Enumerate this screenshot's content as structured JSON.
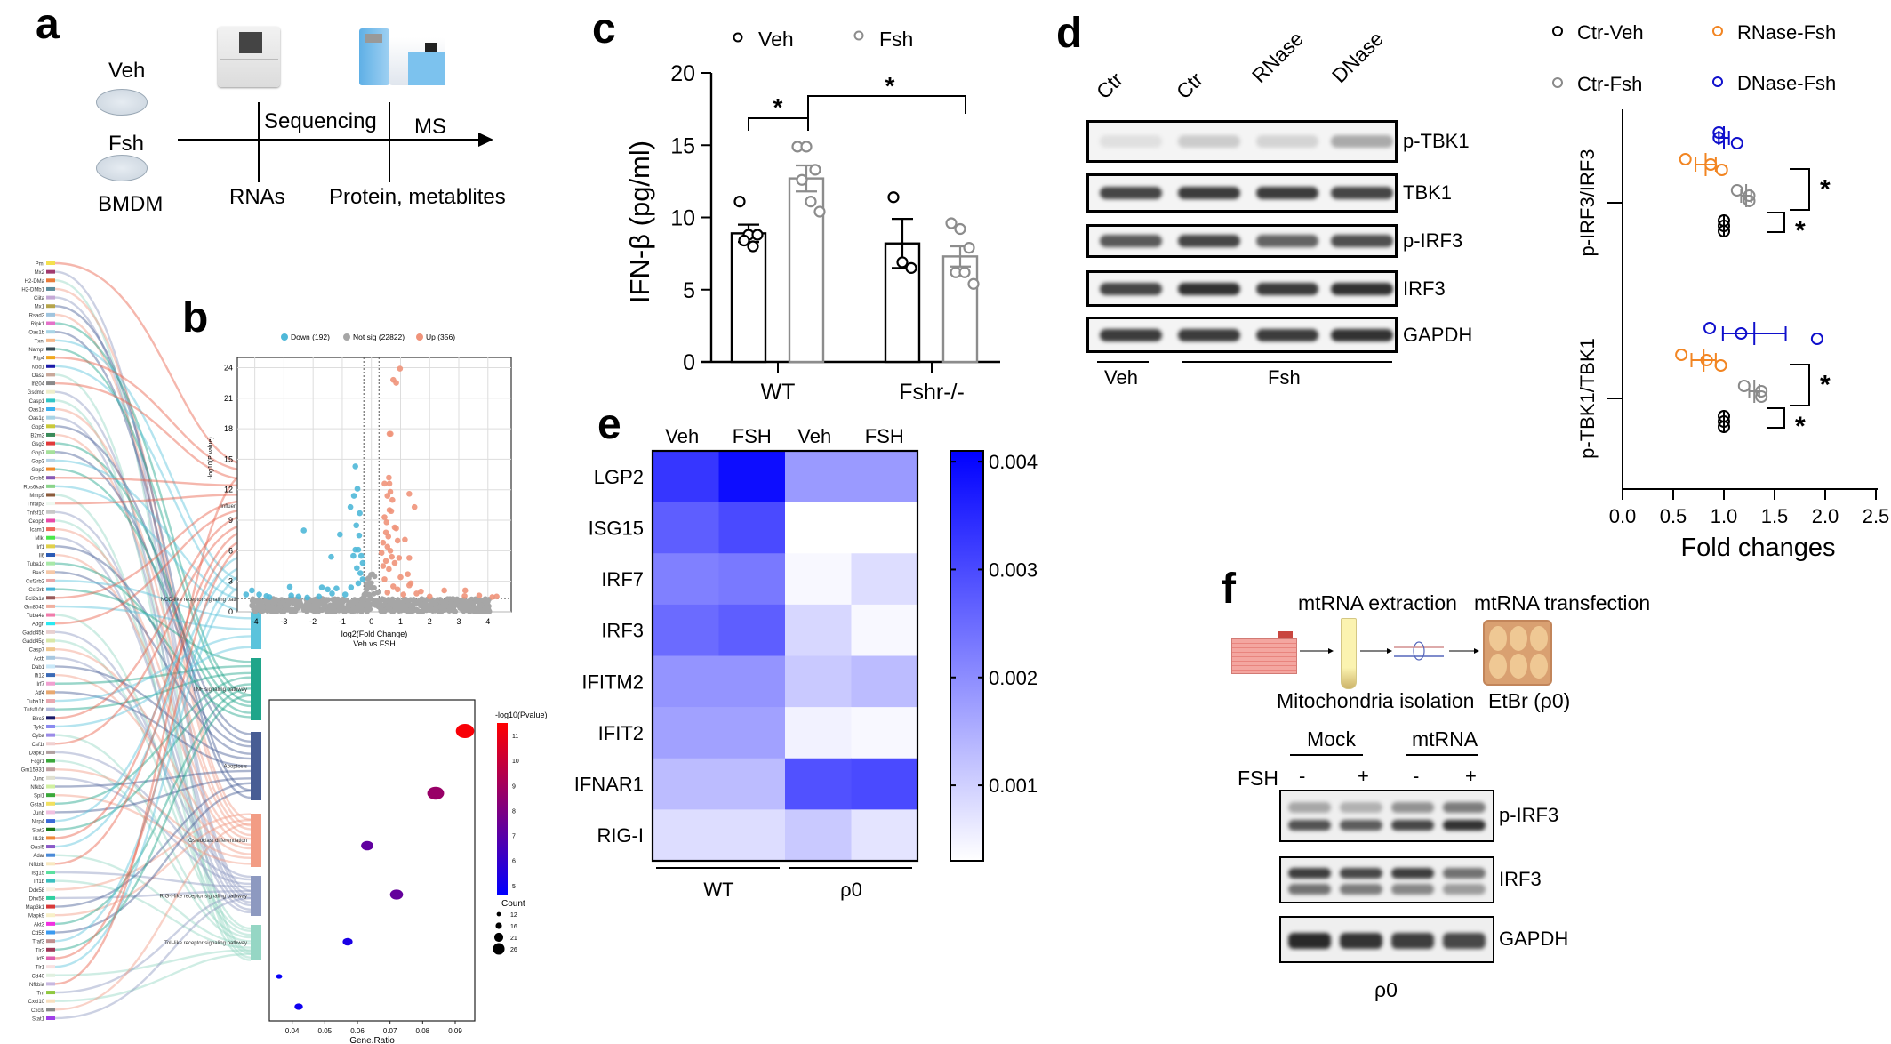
{
  "panels": {
    "a": {
      "label": "a",
      "groups": [
        "Veh",
        "Fsh"
      ],
      "cell_type": "BMDM",
      "arrow_labels": {
        "sequencing": "Sequencing",
        "ms": "MS"
      },
      "outputs": [
        "RNAs",
        "Protein, metablites"
      ],
      "genes": [
        "Pml",
        "Mx2",
        "H2-DMa",
        "H2-DMb1",
        "Ciita",
        "Mx1",
        "Rsad2",
        "Ripk1",
        "Oas1b",
        "Txnl",
        "Nampt",
        "Rtp4",
        "Nod1",
        "Oas2",
        "Ifi204",
        "Gsdmd",
        "Casp1",
        "Oas1a",
        "Oas1g",
        "Gbp5",
        "B2m2",
        "Gsg3",
        "Gbp7",
        "Gbp3",
        "Gbp2",
        "Creb5",
        "Rps6ka4",
        "Mmp9",
        "Tnfaip3",
        "Tnfsf10",
        "Cebpb",
        "Icam1",
        "Mlkl",
        "Irf1",
        "Il6",
        "Tuba1c",
        "Bax3",
        "Csf2rb2",
        "Csf2rb",
        "Bcl2a1a",
        "Gm8045",
        "Tuba4a",
        "Adgrl",
        "Gadd45b",
        "Gadd45g",
        "Casp7",
        "Actb",
        "Dab1",
        "Ifi12",
        "Irf7",
        "Atf4",
        "Tuba1b",
        "Tnfsf10b",
        "Birc3",
        "Tyk2",
        "Cyba",
        "Csf1r",
        "Dapk1",
        "Fcgr1",
        "Gm15931",
        "Jund",
        "Nfkb2",
        "Spi1",
        "Gsta1",
        "Junb",
        "Nlrp4",
        "Stat2",
        "Il12b",
        "Oasl5",
        "Adar",
        "Nfkbib",
        "Isg15",
        "Irf1b",
        "Ddx58",
        "Dhx58",
        "Map3k1",
        "Mapk9",
        "Akt3",
        "Cd55",
        "Traf3",
        "Tlr2",
        "Irf5",
        "Tlr1",
        "Cd40",
        "Nfkbia",
        "Tnf",
        "Cxcl10",
        "Cxcl9",
        "Stat1"
      ],
      "gene_colors": [
        "#f4e04d",
        "#a23a6e",
        "#e87b3a",
        "#5c8d9c",
        "#c5a9d6",
        "#b5a44a",
        "#9fc4de",
        "#e472c9",
        "#a8d4e6",
        "#f5b88a",
        "#3b4e57",
        "#f0a81e",
        "#1a1aa8",
        "#c9a89a",
        "#8a8a8a",
        "#eeeecc",
        "#31c6c6",
        "#3fb3f0",
        "#a8d4e6",
        "#c9c93a",
        "#3a8a5a",
        "#e03a3a",
        "#a5e09a",
        "#b5d4e6",
        "#f08a2a",
        "#8a5ab5",
        "#8ad48a",
        "#8a5a3a",
        "#eef8f0",
        "#c8c8c8",
        "#e84aa8",
        "#f06a5a",
        "#4ae84a",
        "#e0d04a",
        "#2a5ab5",
        "#a8e8a8",
        "#f5c8a8",
        "#e8a8a8",
        "#4ab5d8",
        "#9a5a5a",
        "#f0b0a0",
        "#f07aaa",
        "#2ae8f0",
        "#e8d0d0",
        "#d8e8a8",
        "#f0c890",
        "#a8c8e0",
        "#c8e8f8",
        "#3a6ab5",
        "#f0a0d0",
        "#e8a870",
        "#e8a8b0",
        "#b0b8d8",
        "#1a1a6a",
        "#8a8af0",
        "#9a8ae8",
        "#f0d0d0",
        "#b0a0a0",
        "#3aa83a",
        "#c0a0a0",
        "#e0e0d0",
        "#d0f0a0",
        "#3aa83a",
        "#f0e060",
        "#f0c0e0",
        "#3a6ad8",
        "#1a7a1a",
        "#f08a3a",
        "#8a5ac8",
        "#4a8ad8",
        "#f8e8c0",
        "#5ae0a0",
        "#3ac0c0",
        "#f8f0e0",
        "#30d0a0",
        "#d83a3a",
        "#f8f0c8",
        "#f030e0",
        "#3a9af0",
        "#c09090",
        "#a03a5a",
        "#e060b0",
        "#f8e0e0",
        "#e0f0e0",
        "#c8b8e0",
        "#90c840",
        "#f8e0c0",
        "#8a8a8a",
        "#a040e8"
      ],
      "pathways": [
        "Influenza A",
        "NOD-like receptor signaling pathway",
        "TNF signaling pathway",
        "Apoptosis",
        "Osteoclast differentiation",
        "RIG-I-like receptor signaling pathway",
        "Toll-like receptor signaling pathway"
      ],
      "pathway_colors": [
        "#e8604a",
        "#5bc3dc",
        "#1fa58a",
        "#485d94",
        "#f29c84",
        "#8d99c0",
        "#95d6c4"
      ]
    },
    "b": {
      "label": "b"
    },
    "c": {
      "label": "c"
    },
    "d": {
      "label": "d",
      "lanes": [
        "Ctr",
        "Ctr",
        "RNase",
        "DNase"
      ],
      "blots": [
        "p-TBK1",
        "TBK1",
        "p-IRF3",
        "IRF3",
        "GAPDH"
      ],
      "blot_intensity": [
        [
          0.08,
          0.18,
          0.14,
          0.35
        ],
        [
          0.85,
          0.9,
          0.9,
          0.85
        ],
        [
          0.75,
          0.85,
          0.7,
          0.8
        ],
        [
          0.85,
          0.95,
          0.9,
          0.95
        ],
        [
          0.9,
          0.9,
          0.9,
          0.95
        ]
      ],
      "group_labels": [
        "Veh",
        "Fsh"
      ]
    },
    "e": {
      "label": "e"
    },
    "f": {
      "label": "f",
      "steps": {
        "top1": "mtRNA extraction",
        "top2": "mtRNA transfection",
        "bottom1": "Mitochondria isolation",
        "bottom2": "EtBr (ρ0)"
      },
      "group_labels": [
        "Mock",
        "mtRNA"
      ],
      "fsh_label": "FSH",
      "fsh_signs": [
        "-",
        "+",
        "-",
        "+"
      ],
      "blots": [
        "p-IRF3",
        "IRF3",
        "GAPDH"
      ],
      "footer": "ρ0"
    }
  },
  "chart_data": [
    {
      "id": "volcano",
      "type": "scatter",
      "title": "",
      "legend": [
        {
          "name": "Down (192)",
          "color": "#4fb8d8"
        },
        {
          "name": "Not sig (22822)",
          "color": "#a6a6a6"
        },
        {
          "name": "Up (356)",
          "color": "#f0937a"
        }
      ],
      "legend_position": "top",
      "xlabel": "log2(Fold Change)",
      "xlabel_sub": "Veh vs FSH",
      "ylabel": "-log10(P value)",
      "xlim": [
        -4.6,
        4.8
      ],
      "ylim": [
        0,
        25
      ],
      "xticks": [
        -4,
        -3,
        -2,
        -1,
        0,
        1,
        2,
        3,
        4
      ],
      "yticks": [
        0,
        3,
        6,
        9,
        12,
        15,
        18,
        21,
        24
      ],
      "thresholds": {
        "x": [
          -0.26,
          0.26
        ],
        "y": 1.3
      },
      "up_points": [
        [
          0.98,
          23.9
        ],
        [
          0.75,
          22.8
        ],
        [
          0.85,
          22.5
        ],
        [
          0.62,
          17.5
        ],
        [
          0.66,
          17.5
        ],
        [
          0.6,
          13.2
        ],
        [
          0.62,
          12.6
        ],
        [
          0.45,
          12.6
        ],
        [
          1.3,
          11.6
        ],
        [
          0.65,
          11.8
        ],
        [
          0.55,
          11.4
        ],
        [
          0.72,
          11.0
        ],
        [
          1.48,
          10.3
        ],
        [
          0.62,
          10.0
        ],
        [
          0.68,
          9.9
        ],
        [
          0.45,
          9.3
        ],
        [
          0.52,
          8.8
        ],
        [
          0.8,
          8.3
        ],
        [
          0.85,
          8.2
        ],
        [
          0.5,
          7.8
        ],
        [
          0.58,
          7.4
        ],
        [
          1.15,
          7.1
        ],
        [
          0.9,
          7.0
        ],
        [
          0.4,
          6.8
        ],
        [
          0.55,
          6.4
        ],
        [
          0.65,
          6.0
        ],
        [
          0.35,
          5.8
        ],
        [
          0.7,
          5.4
        ],
        [
          0.95,
          5.3
        ],
        [
          1.3,
          5.3
        ],
        [
          0.5,
          5.0
        ],
        [
          0.8,
          4.8
        ],
        [
          0.4,
          4.5
        ],
        [
          0.6,
          4.2
        ],
        [
          1.0,
          3.4
        ],
        [
          1.25,
          3.7
        ],
        [
          0.45,
          3.2
        ],
        [
          1.35,
          2.8
        ],
        [
          1.3,
          2.6
        ],
        [
          0.75,
          2.5
        ],
        [
          0.9,
          2.2
        ],
        [
          1.7,
          2.0
        ],
        [
          2.5,
          2.1
        ],
        [
          3.22,
          2.1
        ],
        [
          1.55,
          1.8
        ],
        [
          1.1,
          1.7
        ],
        [
          3.7,
          1.6
        ],
        [
          4.3,
          1.5
        ],
        [
          4.15,
          1.45
        ],
        [
          2.0,
          1.5
        ],
        [
          3.2,
          1.55
        ],
        [
          0.55,
          1.9
        ]
      ],
      "down_points": [
        [
          -0.55,
          14.3
        ],
        [
          -0.48,
          12.1
        ],
        [
          -0.6,
          11.4
        ],
        [
          -0.72,
          10.3
        ],
        [
          -0.4,
          9.7
        ],
        [
          -0.52,
          8.5
        ],
        [
          -2.32,
          8.0
        ],
        [
          -1.08,
          7.6
        ],
        [
          -0.42,
          7.5
        ],
        [
          -0.55,
          6.1
        ],
        [
          -0.45,
          6.1
        ],
        [
          -0.35,
          5.5
        ],
        [
          -1.38,
          5.4
        ],
        [
          -0.62,
          5.5
        ],
        [
          -0.3,
          4.8
        ],
        [
          -0.5,
          4.3
        ],
        [
          -0.38,
          3.8
        ],
        [
          -0.3,
          3.2
        ],
        [
          -0.45,
          2.8
        ],
        [
          -0.7,
          2.4
        ],
        [
          -2.8,
          2.45
        ],
        [
          -1.7,
          2.4
        ],
        [
          -1.2,
          2.3
        ],
        [
          -1.5,
          2.2
        ],
        [
          -4.1,
          2.1
        ],
        [
          -4.3,
          1.7
        ],
        [
          -3.85,
          1.7
        ],
        [
          -3.6,
          1.55
        ],
        [
          -2.75,
          1.6
        ],
        [
          -2.2,
          1.4
        ],
        [
          -1.35,
          1.8
        ],
        [
          -0.9,
          1.7
        ],
        [
          -1.8,
          1.5
        ],
        [
          -3.5,
          1.45
        ],
        [
          -2.5,
          1.5
        ]
      ],
      "notsig_band": {
        "x": [
          -4.1,
          4.1
        ],
        "y_max": 1.3,
        "peak_near_zero": 4.5
      }
    },
    {
      "id": "enrichment_bubble",
      "type": "scatter",
      "xlabel": "Gene.Ratio",
      "xlim": [
        0.033,
        0.096
      ],
      "xticks": [
        0.04,
        0.05,
        0.06,
        0.07,
        0.08,
        0.09
      ],
      "xtick_labels": [
        "0.04",
        "0.05",
        "0.06",
        "0.07",
        "0.08",
        "0.09"
      ],
      "categories": [
        "Influenza A",
        "NOD-like receptor signaling pathway",
        "TNF signaling pathway",
        "Apoptosis",
        "Osteoclast differentiation",
        "RIG-I-like receptor signaling pathway",
        "Toll-like receptor signaling pathway"
      ],
      "points": [
        {
          "pathway": "Influenza A",
          "gene_ratio": 0.093,
          "neglog10p": 11.3,
          "count": 28
        },
        {
          "pathway": "NOD-like receptor signaling pathway",
          "gene_ratio": 0.084,
          "neglog10p": 8.7,
          "count": 26
        },
        {
          "pathway": "TNF signaling pathway",
          "gene_ratio": 0.063,
          "neglog10p": 7.2,
          "count": 20
        },
        {
          "pathway": "Apoptosis",
          "gene_ratio": 0.072,
          "neglog10p": 7.3,
          "count": 21
        },
        {
          "pathway": "Osteoclast differentiation",
          "gene_ratio": 0.057,
          "neglog10p": 5.3,
          "count": 17
        },
        {
          "pathway": "RIG-I-like receptor signaling pathway",
          "gene_ratio": 0.036,
          "neglog10p": 4.8,
          "count": 12
        },
        {
          "pathway": "Toll-like receptor signaling pathway",
          "gene_ratio": 0.042,
          "neglog10p": 5.0,
          "count": 15
        }
      ],
      "colorbar": {
        "title": "-log10(Pvalue)",
        "range": [
          4.6,
          11.5
        ],
        "ticks": [
          5,
          6,
          7,
          8,
          9,
          10,
          11
        ],
        "low_color": "#0000ff",
        "high_color": "#ff0000"
      },
      "size_legend": {
        "title": "Count",
        "values": [
          12,
          16,
          21,
          26
        ]
      }
    },
    {
      "id": "ifn_beta_bar",
      "type": "bar",
      "title": "",
      "categories": [
        "WT",
        "Fshr-/-"
      ],
      "ylabel": "IFN-β (pg/ml)",
      "ylim": [
        0,
        20
      ],
      "yticks": [
        0,
        5,
        10,
        15,
        20
      ],
      "series": [
        {
          "name": "Veh",
          "color": "#000000",
          "values": [
            8.9,
            8.2
          ],
          "sem": [
            0.6,
            1.7
          ],
          "points": [
            [
              11.1,
              8.8,
              8.8,
              8.4,
              8.0
            ],
            [
              11.4,
              6.9,
              6.5
            ]
          ]
        },
        {
          "name": "Fsh",
          "color": "#8c8c8c",
          "values": [
            12.7,
            7.3
          ],
          "sem": [
            0.9,
            0.7
          ],
          "points": [
            [
              14.9,
              14.9,
              13.3,
              12.6,
              11.1,
              10.4
            ],
            [
              9.6,
              9.2,
              7.9,
              6.2,
              6.2,
              5.4
            ]
          ]
        }
      ],
      "legend_position": "top",
      "significance": [
        {
          "from": "WT-Veh",
          "to": "WT-Fsh",
          "label": "*"
        },
        {
          "from": "WT-Fsh",
          "to": "Fshr-/--Fsh",
          "label": "*"
        }
      ]
    },
    {
      "id": "fold_change_dot",
      "type": "scatter",
      "xlabel": "Fold changes",
      "xlim": [
        0,
        2.5
      ],
      "xticks": [
        0.0,
        0.5,
        1.0,
        1.5,
        2.0,
        2.5
      ],
      "xtick_labels": [
        "0.0",
        "0.5",
        "1.0",
        "1.5",
        "2.0",
        "2.5"
      ],
      "categories": [
        "p-IRF3/IRF3",
        "p-TBK1/TBK1"
      ],
      "legend": [
        {
          "name": "Ctr-Veh",
          "color": "#000000"
        },
        {
          "name": "RNase-Fsh",
          "color": "#f28522"
        },
        {
          "name": "Ctr-Fsh",
          "color": "#8a8a8a"
        },
        {
          "name": "DNase-Fsh",
          "color": "#1010cc"
        }
      ],
      "legend_position": "top",
      "groups": [
        {
          "category": "p-IRF3/IRF3",
          "series": [
            {
              "name": "DNase-Fsh",
              "mean": 1.0,
              "sem": 0.05,
              "points": [
                0.95,
                0.95,
                1.13
              ]
            },
            {
              "name": "RNase-Fsh",
              "mean": 0.82,
              "sem": 0.1,
              "points": [
                0.62,
                0.87,
                0.98
              ]
            },
            {
              "name": "Ctr-Fsh",
              "mean": 1.22,
              "sem": 0.05,
              "points": [
                1.13,
                1.25,
                1.25
              ]
            },
            {
              "name": "Ctr-Veh",
              "mean": 1.0,
              "sem": 0.0,
              "points": [
                1.0,
                1.0,
                1.0
              ]
            }
          ],
          "significance": [
            "*",
            "*"
          ]
        },
        {
          "category": "p-TBK1/TBK1",
          "series": [
            {
              "name": "DNase-Fsh",
              "mean": 1.3,
              "sem": 0.31,
              "points": [
                0.86,
                1.17,
                1.92
              ]
            },
            {
              "name": "RNase-Fsh",
              "mean": 0.8,
              "sem": 0.12,
              "points": [
                0.58,
                0.83,
                0.97
              ]
            },
            {
              "name": "Ctr-Fsh",
              "mean": 1.3,
              "sem": 0.05,
              "points": [
                1.2,
                1.37,
                1.37
              ]
            },
            {
              "name": "Ctr-Veh",
              "mean": 1.0,
              "sem": 0.0,
              "points": [
                1.0,
                1.0,
                1.0
              ]
            }
          ],
          "significance": [
            "*",
            "*"
          ]
        }
      ]
    },
    {
      "id": "heatmap_e",
      "type": "heatmap",
      "columns": [
        "Veh",
        "FSH",
        "Veh",
        "FSH"
      ],
      "column_groups": [
        {
          "label": "WT",
          "span": 2
        },
        {
          "label": "ρ0",
          "span": 2
        }
      ],
      "rows": [
        "LGP2",
        "ISG15",
        "IRF7",
        "IRF3",
        "IFITM2",
        "IFIT2",
        "IFNAR1",
        "RIG-I"
      ],
      "values": [
        [
          0.0033,
          0.0039,
          0.0018,
          0.0018
        ],
        [
          0.0027,
          0.003,
          0.0003,
          0.0003
        ],
        [
          0.0022,
          0.0023,
          0.0004,
          0.0008
        ],
        [
          0.0025,
          0.0027,
          0.0009,
          0.0004
        ],
        [
          0.0019,
          0.0019,
          0.0011,
          0.0013
        ],
        [
          0.0017,
          0.0017,
          0.0005,
          0.0004
        ],
        [
          0.0013,
          0.0013,
          0.0029,
          0.003
        ],
        [
          0.0008,
          0.0008,
          0.0011,
          0.0007
        ]
      ],
      "colorbar": {
        "range": [
          0.0003,
          0.0041
        ],
        "ticks": [
          0.001,
          0.002,
          0.003,
          0.004
        ],
        "tick_labels": [
          "0.001",
          "0.002",
          "0.003",
          "0.004"
        ],
        "low_color": "#ffffff",
        "high_color": "#0000ff"
      }
    }
  ]
}
